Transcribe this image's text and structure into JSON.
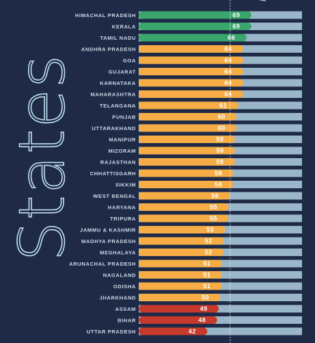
{
  "chart_data": {
    "type": "bar",
    "orientation": "horizontal",
    "ylabel": "States",
    "xlim": [
      0,
      100
    ],
    "grid": false,
    "categories": [
      "HIMACHAL PRADESH",
      "KERALA",
      "TAMIL NADU",
      "ANDHRA PRADESH",
      "GOA",
      "GUJARAT",
      "KARNATAKA",
      "MAHARASHTRA",
      "TELANGANA",
      "PUNJAB",
      "UTTARAKHAND",
      "MANIPUR",
      "MIZORAM",
      "RAJASTHAN",
      "CHHATTISGARH",
      "SIKKIM",
      "WEST BENGAL",
      "HARYANA",
      "TRIPURA",
      "JAMMU & KASHMIR",
      "MADHYA PRADESH",
      "MEGHALAYA",
      "ARUNACHAL PRADESH",
      "NAGALAND",
      "ODISHA",
      "JHARKHAND",
      "ASSAM",
      "BIHAR",
      "UTTAR PRADESH"
    ],
    "values": [
      69,
      69,
      66,
      64,
      64,
      64,
      64,
      64,
      61,
      60,
      60,
      59,
      59,
      59,
      58,
      58,
      56,
      55,
      55,
      53,
      52,
      52,
      51,
      51,
      51,
      50,
      49,
      48,
      42
    ],
    "reference_line": 56,
    "colors": {
      "high": "#3aa66c",
      "mid": "#f6ad45",
      "low": "#c63a2c",
      "track": "#9ab7ca",
      "reference": "#e8eef4"
    },
    "color_thresholds": {
      "high_min": 65,
      "low_max": 49
    }
  }
}
